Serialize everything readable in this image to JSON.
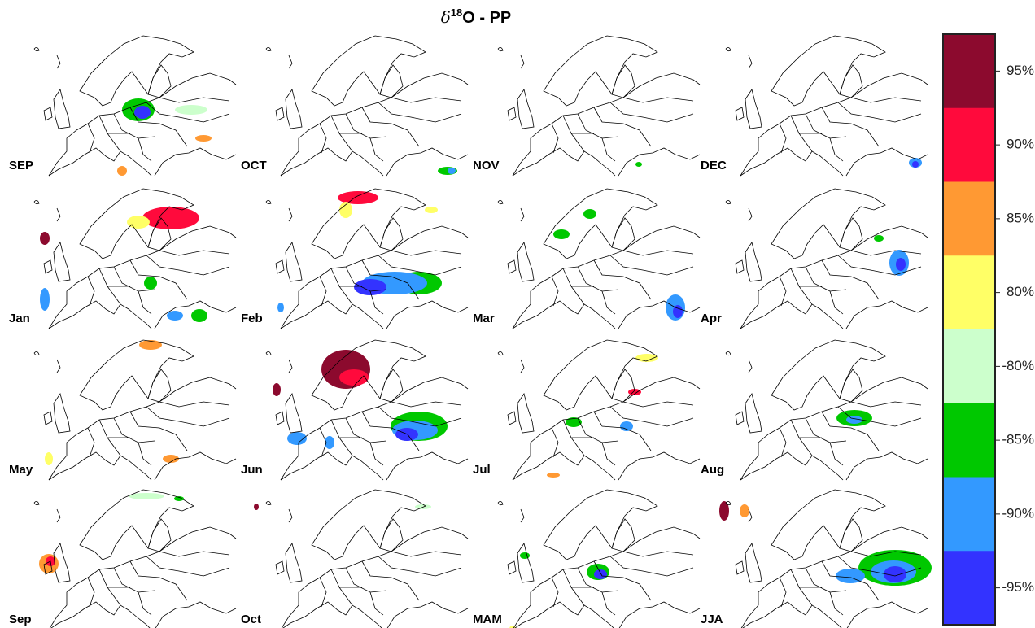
{
  "title": {
    "symbol": "δ",
    "superscript": "18",
    "text": "O - PP"
  },
  "panels": [
    {
      "label": "SEP"
    },
    {
      "label": "OCT"
    },
    {
      "label": "NOV"
    },
    {
      "label": "DEC"
    },
    {
      "label": "Jan"
    },
    {
      "label": "Feb"
    },
    {
      "label": "Mar"
    },
    {
      "label": "Apr"
    },
    {
      "label": "May"
    },
    {
      "label": "Jun"
    },
    {
      "label": "Jul"
    },
    {
      "label": "Aug"
    },
    {
      "label": "Sep"
    },
    {
      "label": "Oct"
    },
    {
      "label": "MAM"
    },
    {
      "label": "JJA"
    }
  ],
  "colorbar": [
    {
      "label": "95%",
      "color": "#8c0a2e"
    },
    {
      "label": "90%",
      "color": "#ff0a3c"
    },
    {
      "label": "85%",
      "color": "#ff9933"
    },
    {
      "label": "80%",
      "color": "#ffff66"
    },
    {
      "label": "-80%",
      "color": "#ccffcc"
    },
    {
      "label": "-85%",
      "color": "#00c800"
    },
    {
      "label": "-90%",
      "color": "#3399ff"
    },
    {
      "label": "-95%",
      "color": "#3333ff"
    }
  ]
}
